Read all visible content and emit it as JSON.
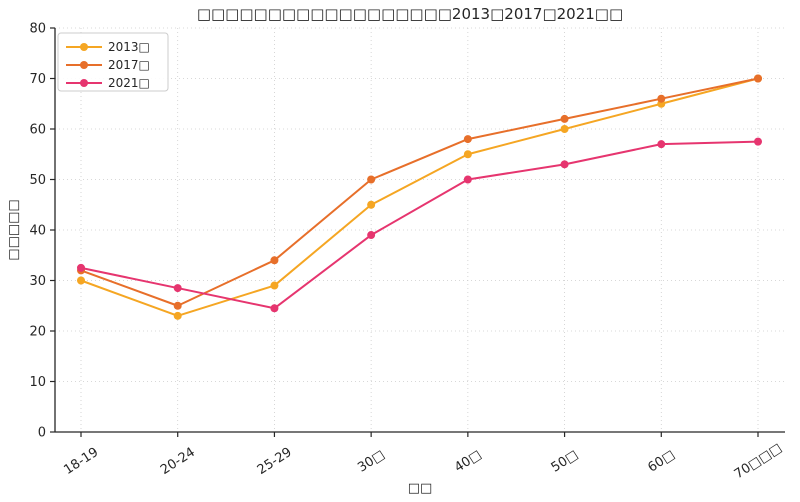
{
  "chart_data": {
    "type": "line",
    "title": "□□□□□□□□□□□□□□□□□□2013□2017□2021□□",
    "xlabel": "□□",
    "ylabel": "□□□□□",
    "categories": [
      "18-19",
      "20-24",
      "25-29",
      "30□",
      "40□",
      "50□",
      "60□",
      "70□□□"
    ],
    "series": [
      {
        "name": "2013□",
        "color": "#F5A623",
        "values": [
          30,
          23,
          29,
          45,
          55,
          60,
          65,
          70
        ]
      },
      {
        "name": "2017□",
        "color": "#E76F2A",
        "values": [
          32,
          25,
          34,
          50,
          58,
          62,
          66,
          70
        ]
      },
      {
        "name": "2021□",
        "color": "#E6356F",
        "values": [
          32.5,
          28.5,
          24.5,
          39,
          50,
          53,
          57,
          57.5
        ]
      }
    ],
    "ylim": [
      0,
      80
    ],
    "yticks": [
      0,
      10,
      20,
      30,
      40,
      50,
      60,
      70,
      80
    ],
    "grid": true,
    "grid_style": "dotted",
    "legend_position": "upper-left",
    "axis_color": "#262626",
    "grid_color": "#cccccc",
    "legend_border_color": "#cccccc",
    "background_color": "#ffffff",
    "note_glyphs": "CJK characters shown as missing-glyph tofu boxes in source image"
  }
}
